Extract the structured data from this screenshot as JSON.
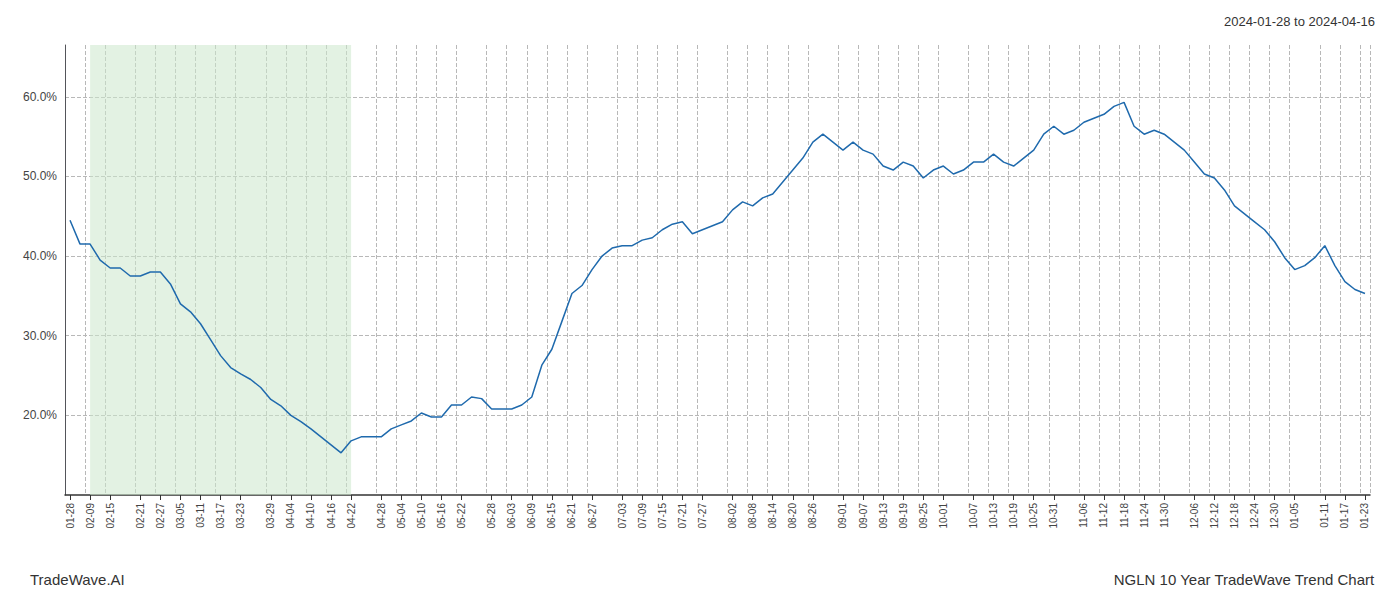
{
  "chart_data": {
    "type": "line",
    "title": "NGLN 10 Year TradeWave Trend Chart",
    "subtitle": "2024-01-28 to 2024-04-16",
    "annotations": [
      "TradeWave.AI"
    ],
    "categories": [
      "01-28",
      null,
      "02-09",
      null,
      "02-15",
      null,
      null,
      "02-21",
      null,
      "02-27",
      null,
      "03-05",
      null,
      "03-11",
      null,
      "03-17",
      null,
      "03-23",
      null,
      null,
      "03-29",
      null,
      "04-04",
      null,
      "04-10",
      null,
      "04-16",
      null,
      "04-22",
      null,
      null,
      "04-28",
      null,
      "05-04",
      null,
      "05-10",
      null,
      "05-16",
      null,
      "05-22",
      null,
      null,
      "05-28",
      null,
      "06-03",
      null,
      "06-09",
      null,
      "06-15",
      null,
      "06-21",
      null,
      "06-27",
      null,
      null,
      "07-03",
      null,
      "07-09",
      null,
      "07-15",
      null,
      "07-21",
      null,
      "07-27",
      null,
      null,
      "08-02",
      null,
      "08-08",
      null,
      "08-14",
      null,
      "08-20",
      null,
      "08-26",
      null,
      null,
      "09-01",
      null,
      "09-07",
      null,
      "09-13",
      null,
      "09-19",
      null,
      "09-25",
      null,
      "10-01",
      null,
      null,
      "10-07",
      null,
      "10-13",
      null,
      "10-19",
      null,
      "10-25",
      null,
      "10-31",
      null,
      null,
      "11-06",
      null,
      "11-12",
      null,
      "11-18",
      null,
      "11-24",
      null,
      "11-30",
      null,
      null,
      "12-06",
      null,
      "12-12",
      null,
      "12-18",
      null,
      "12-24",
      null,
      "12-30",
      null,
      "01-05",
      null,
      null,
      "01-11",
      null,
      "01-17",
      null,
      "01-23"
    ],
    "values": [
      0.445,
      0.415,
      0.415,
      0.395,
      0.385,
      0.385,
      0.375,
      0.375,
      0.38,
      0.38,
      0.365,
      0.34,
      0.33,
      0.315,
      0.295,
      0.275,
      0.26,
      0.252,
      0.245,
      0.235,
      0.22,
      0.212,
      0.2,
      0.192,
      0.183,
      0.173,
      0.163,
      0.153,
      0.168,
      0.173,
      0.173,
      0.173,
      0.183,
      0.188,
      0.193,
      0.203,
      0.198,
      0.198,
      0.213,
      0.213,
      0.223,
      0.221,
      0.208,
      0.208,
      0.208,
      0.213,
      0.223,
      0.263,
      0.283,
      0.318,
      0.353,
      0.363,
      0.383,
      0.4,
      0.41,
      0.413,
      0.413,
      0.42,
      0.423,
      0.433,
      0.44,
      0.443,
      0.428,
      0.433,
      0.438,
      0.443,
      0.458,
      0.468,
      0.463,
      0.473,
      0.478,
      0.493,
      0.508,
      0.523,
      0.543,
      0.553,
      0.543,
      0.533,
      0.543,
      0.533,
      0.528,
      0.513,
      0.508,
      0.518,
      0.513,
      0.498,
      0.508,
      0.513,
      0.503,
      0.508,
      0.518,
      0.518,
      0.528,
      0.518,
      0.513,
      0.523,
      0.533,
      0.553,
      0.563,
      0.553,
      0.558,
      0.568,
      0.573,
      0.578,
      0.588,
      0.593,
      0.563,
      0.553,
      0.558,
      0.553,
      0.543,
      0.533,
      0.518,
      0.503,
      0.498,
      0.483,
      0.463,
      0.453,
      0.443,
      0.433,
      0.418,
      0.398,
      0.383,
      0.388,
      0.398,
      0.413,
      0.388,
      0.368,
      0.358,
      0.353
    ],
    "color": "#1f6aad",
    "shade": {
      "from": "02-09",
      "to": "04-22",
      "color": "#cce8cc"
    },
    "ylim": [
      0.1,
      0.665
    ],
    "yticks": [
      {
        "value": 0.2,
        "label": "20.0%"
      },
      {
        "value": 0.3,
        "label": "30.0%"
      },
      {
        "value": 0.4,
        "label": "40.0%"
      },
      {
        "value": 0.5,
        "label": "50.0%"
      },
      {
        "value": 0.6,
        "label": "60.0%"
      }
    ],
    "grid": true
  }
}
